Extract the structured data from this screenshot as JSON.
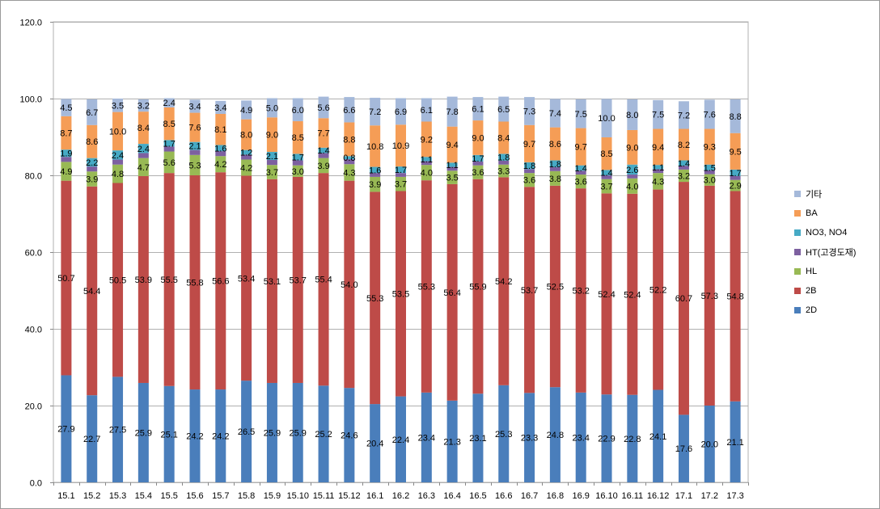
{
  "chart_data": {
    "type": "bar",
    "stacked": true,
    "categories": [
      "15.1",
      "15.2",
      "15.3",
      "15.4",
      "15.5",
      "15.6",
      "15.7",
      "15.8",
      "15.9",
      "15.10",
      "15.11",
      "15.12",
      "16.1",
      "16.2",
      "16.3",
      "16.4",
      "16.5",
      "16.6",
      "16.7",
      "16.8",
      "16.9",
      "16.10",
      "16.11",
      "16.12",
      "17.1",
      "17.2",
      "17.3"
    ],
    "ylim": [
      0,
      120
    ],
    "yticks": [
      "0.0",
      "20.0",
      "40.0",
      "60.0",
      "80.0",
      "100.0",
      "120.0"
    ],
    "grid": "horizontal",
    "legend_position": "right",
    "series": [
      {
        "name": "2D",
        "color": "#4a7ebb",
        "values": [
          27.9,
          22.7,
          27.5,
          25.9,
          25.1,
          24.2,
          24.2,
          26.5,
          25.9,
          25.9,
          25.2,
          24.6,
          20.4,
          22.4,
          23.4,
          21.3,
          23.1,
          25.3,
          23.3,
          24.8,
          23.4,
          22.9,
          22.8,
          24.1,
          17.6,
          20.0,
          21.1
        ],
        "labels": [
          "27.9",
          "22.7",
          "27.5",
          "25.9",
          "25.1",
          "24.2",
          "24.2",
          "26.5",
          "25.9",
          "25.9",
          "25.2",
          "24.6",
          "20.4",
          "22.4",
          "23.4",
          "21.3",
          "23.1",
          "25.3",
          "23.3",
          "24.8",
          "23.4",
          "22.9",
          "22.8",
          "24.1",
          "17.6",
          "20.0",
          "21.1"
        ]
      },
      {
        "name": "2B",
        "color": "#be4b48",
        "values": [
          50.7,
          54.4,
          50.5,
          53.9,
          55.5,
          55.8,
          56.6,
          53.4,
          53.1,
          53.7,
          55.4,
          54.0,
          55.3,
          53.5,
          55.3,
          56.4,
          55.9,
          54.2,
          53.7,
          52.5,
          53.2,
          52.4,
          52.4,
          52.2,
          60.7,
          57.3,
          54.8
        ],
        "labels": [
          "50.7",
          "54.4",
          "50.5",
          "53.9",
          "55.5",
          "55.8",
          "56.6",
          "53.4",
          "53.1",
          "53.7",
          "55.4",
          "54.0",
          "55.3",
          "53.5",
          "55.3",
          "56.4",
          "55.9",
          "54.2",
          "53.7",
          "52.5",
          "53.2",
          "52.4",
          "52.4",
          "52.2",
          "60.7",
          "57.3",
          "54.8"
        ]
      },
      {
        "name": "HL",
        "color": "#98b954",
        "values": [
          4.9,
          3.9,
          4.8,
          4.7,
          5.6,
          5.3,
          4.2,
          4.2,
          3.7,
          3.0,
          3.9,
          4.3,
          3.9,
          3.7,
          4.0,
          3.5,
          3.6,
          3.3,
          3.6,
          3.8,
          3.6,
          3.7,
          4.0,
          4.3,
          3.2,
          3.0,
          2.9
        ],
        "labels": [
          "4.9",
          "3.9",
          "4.8",
          "4.7",
          "5.6",
          "5.3",
          "4.2",
          "4.2",
          "3.7",
          "3.0",
          "3.9",
          "4.3",
          "3.9",
          "3.7",
          "4.0",
          "3.5",
          "3.6",
          "3.3",
          "3.6",
          "3.8",
          "3.6",
          "3.7",
          "4.0",
          "4.3",
          "3.2",
          "3.0",
          "2.9"
        ]
      },
      {
        "name": "HT(고경도재)",
        "color": "#7d60a0",
        "values": [
          1.3,
          1.3,
          1.3,
          1.3,
          1.3,
          1.3,
          1.3,
          1.3,
          1.3,
          1.3,
          1.3,
          1.3,
          1.0,
          1.0,
          1.0,
          1.0,
          1.0,
          1.0,
          1.0,
          1.0,
          1.0,
          1.0,
          1.0,
          1.0,
          1.0,
          1.0,
          1.0
        ],
        "labels": []
      },
      {
        "name": "NO3, NO4",
        "color": "#46aac5",
        "values": [
          1.9,
          2.2,
          2.4,
          2.4,
          1.7,
          2.1,
          1.6,
          1.2,
          2.1,
          1.7,
          1.4,
          0.8,
          1.6,
          1.7,
          1.1,
          1.1,
          1.7,
          1.8,
          1.8,
          1.8,
          1.4,
          1.4,
          2.6,
          1.1,
          1.4,
          1.5,
          1.7
        ],
        "labels": [
          "1.9",
          "2.2",
          "2.4",
          "2.4",
          "1.7",
          "2.1",
          "1.6",
          "1.2",
          "2.1",
          "1.7",
          "1.4",
          "0.8",
          "1.6",
          "1.7",
          "1.1",
          "1.1",
          "1.7",
          "1.8",
          "1.8",
          "1.8",
          "1.4",
          "1.4",
          "2.6",
          "1.1",
          "1.4",
          "1.5",
          "1.7"
        ]
      },
      {
        "name": "BA",
        "color": "#f59d56",
        "values": [
          8.7,
          8.6,
          10.0,
          8.4,
          8.5,
          7.6,
          8.1,
          8.0,
          9.0,
          8.5,
          7.7,
          8.8,
          10.8,
          10.9,
          9.2,
          9.4,
          9.0,
          8.4,
          9.7,
          8.6,
          9.7,
          8.5,
          9.0,
          9.4,
          8.2,
          9.3,
          9.5
        ],
        "labels": [
          "8.7",
          "8.6",
          "10.0",
          "8.4",
          "8.5",
          "7.6",
          "8.1",
          "8.0",
          "9.0",
          "8.5",
          "7.7",
          "8.8",
          "10.8",
          "10.9",
          "9.2",
          "9.4",
          "9.0",
          "8.4",
          "9.7",
          "8.6",
          "9.7",
          "8.5",
          "9.0",
          "9.4",
          "8.2",
          "9.3",
          "9.5"
        ]
      },
      {
        "name": "기타",
        "color": "#a5b9da",
        "values": [
          4.5,
          6.7,
          3.5,
          3.2,
          2.4,
          3.4,
          3.4,
          4.9,
          5.0,
          6.0,
          5.6,
          6.6,
          7.2,
          6.9,
          6.1,
          7.8,
          6.1,
          6.5,
          7.3,
          7.4,
          7.5,
          10.0,
          8.0,
          7.5,
          7.2,
          7.6,
          8.8
        ],
        "labels": [
          "4.5",
          "6.7",
          "3.5",
          "3.2",
          "2.4",
          "3.4",
          "3.4",
          "4.9",
          "5.0",
          "6.0",
          "5.6",
          "6.6",
          "7.2",
          "6.9",
          "6.1",
          "7.8",
          "6.1",
          "6.5",
          "7.3",
          "7.4",
          "7.5",
          "10.0",
          "8.0",
          "7.5",
          "7.2",
          "7.6",
          "8.8"
        ]
      }
    ]
  }
}
